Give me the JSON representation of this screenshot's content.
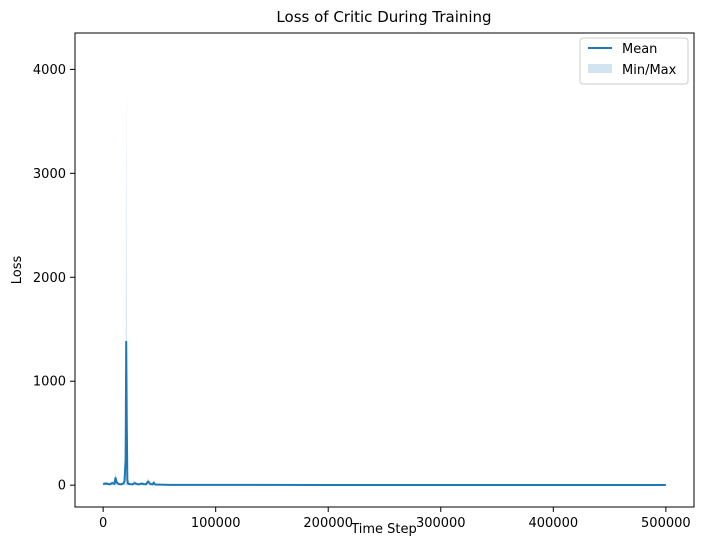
{
  "chart_data": {
    "type": "line",
    "title": "Loss of Critic During Training",
    "xlabel": "Time Step",
    "ylabel": "Loss",
    "xlim": [
      -25000,
      525000
    ],
    "ylim": [
      -210,
      4350
    ],
    "xticks": [
      0,
      100000,
      200000,
      300000,
      400000,
      500000
    ],
    "yticks": [
      0,
      1000,
      2000,
      3000,
      4000
    ],
    "grid": false,
    "legend_position": "top-right",
    "legend": [
      "Mean",
      "Min/Max"
    ],
    "series": [
      {
        "name": "Mean",
        "color": "#1f77b4",
        "x": [
          0,
          2000,
          4000,
          6000,
          8000,
          10000,
          11000,
          12000,
          14000,
          16000,
          18000,
          19000,
          20000,
          20500,
          21000,
          21500,
          22000,
          24000,
          26000,
          28000,
          30000,
          32000,
          34000,
          36000,
          38000,
          40000,
          42000,
          44000,
          45000,
          46000,
          48000,
          50000,
          60000,
          100000,
          200000,
          300000,
          400000,
          500000
        ],
        "y": [
          10,
          15,
          12,
          8,
          20,
          12,
          70,
          25,
          10,
          8,
          15,
          40,
          250,
          1380,
          600,
          60,
          15,
          10,
          8,
          20,
          10,
          8,
          15,
          10,
          8,
          35,
          10,
          8,
          25,
          8,
          5,
          5,
          3,
          3,
          2,
          2,
          2,
          2
        ]
      },
      {
        "name": "Min/Max",
        "color": "#1f77b4",
        "x": [
          0,
          2000,
          4000,
          6000,
          8000,
          10000,
          11000,
          12000,
          14000,
          16000,
          18000,
          19000,
          20000,
          20500,
          21000,
          21500,
          22000,
          24000,
          26000,
          28000,
          30000,
          32000,
          34000,
          36000,
          38000,
          40000,
          42000,
          44000,
          45000,
          46000,
          48000,
          50000,
          60000,
          100000,
          200000,
          300000,
          400000,
          500000
        ],
        "min": [
          0,
          0,
          0,
          0,
          0,
          0,
          0,
          0,
          0,
          0,
          0,
          0,
          0,
          0,
          0,
          0,
          0,
          0,
          0,
          0,
          0,
          0,
          0,
          0,
          0,
          0,
          0,
          0,
          0,
          0,
          0,
          0,
          0,
          0,
          0,
          0,
          0,
          0
        ],
        "max": [
          25,
          35,
          30,
          20,
          45,
          30,
          130,
          50,
          25,
          20,
          35,
          200,
          700,
          3950,
          1900,
          150,
          35,
          25,
          20,
          45,
          25,
          20,
          30,
          25,
          20,
          70,
          25,
          20,
          50,
          20,
          12,
          12,
          8,
          6,
          5,
          5,
          5,
          5
        ]
      }
    ]
  }
}
